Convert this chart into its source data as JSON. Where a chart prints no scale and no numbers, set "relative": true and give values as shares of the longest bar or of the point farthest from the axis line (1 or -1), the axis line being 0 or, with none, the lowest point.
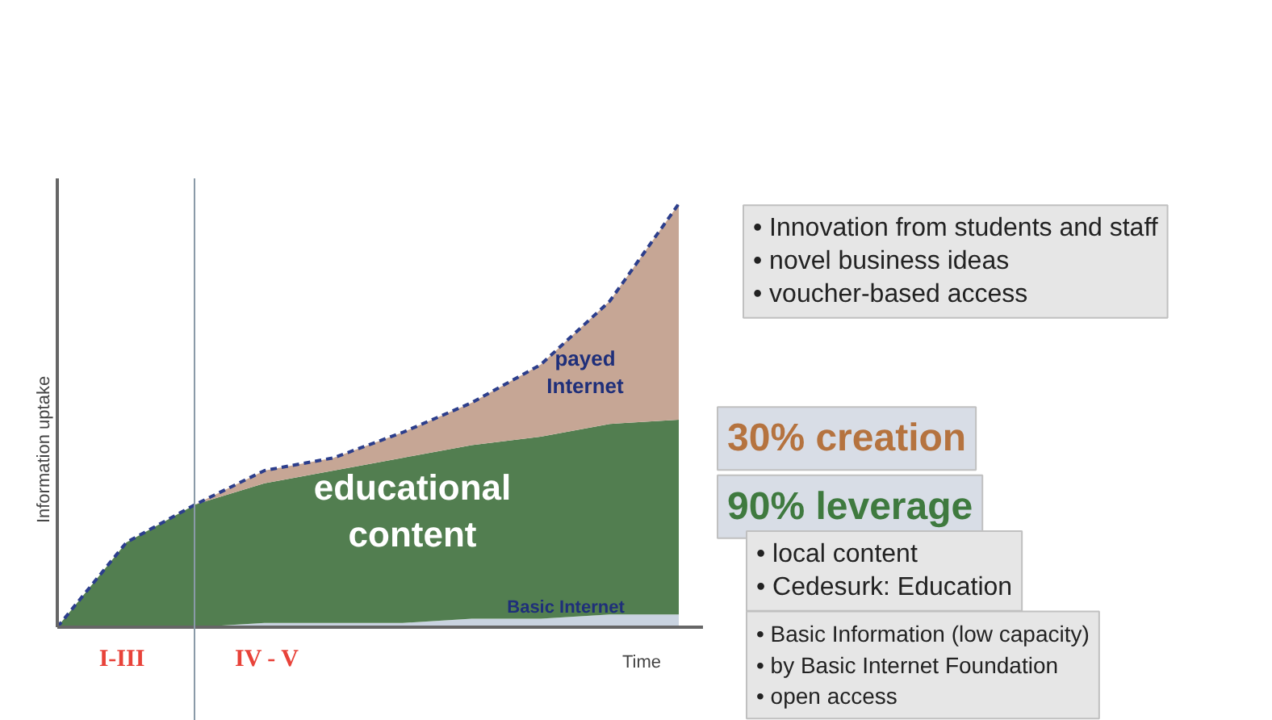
{
  "chart_data": {
    "type": "area",
    "stacked": true,
    "relative": true,
    "xlabel": "Time",
    "ylabel": "Information uptake",
    "categories": [
      null,
      null,
      null,
      null,
      null,
      null,
      null,
      null,
      null,
      null
    ],
    "series": [
      {
        "name": "Basic Internet",
        "color": "#c9d3e0",
        "values": [
          0,
          0,
          0,
          0.01,
          0.01,
          0.01,
          0.02,
          0.02,
          0.03,
          0.03
        ]
      },
      {
        "name": "educational content",
        "color": "#527e50",
        "values": [
          0,
          0.2,
          0.29,
          0.33,
          0.36,
          0.39,
          0.41,
          0.43,
          0.45,
          0.46
        ]
      },
      {
        "name": "payed Internet",
        "color": "#c6a695",
        "line_style": "dashed",
        "values": [
          0,
          0,
          0,
          0.03,
          0.03,
          0.06,
          0.1,
          0.17,
          0.29,
          0.51
        ]
      }
    ],
    "annotations": [
      "I-III",
      "IV - V",
      "• Innovation from students and staff\n• novel business ideas\n• voucher-based access",
      "30% creation",
      "90% leverage",
      "• local content\n• Cedesurk: Education",
      "• Basic Information (low capacity)\n• by Basic Internet Foundation\n• open access"
    ]
  }
}
